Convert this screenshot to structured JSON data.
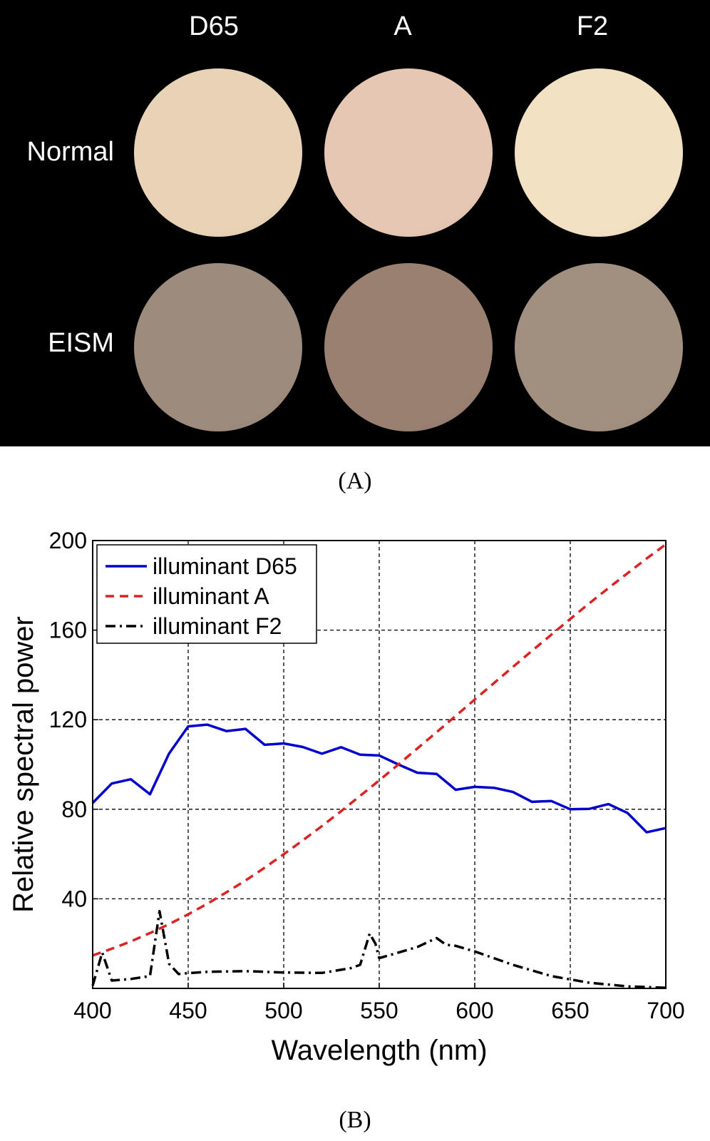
{
  "panel_a": {
    "columns": [
      "D65",
      "A",
      "F2"
    ],
    "rows": [
      {
        "label": "Normal",
        "colors": [
          "#e9d3b6",
          "#e6c7b3",
          "#f3e1c4"
        ]
      },
      {
        "label": "EISM",
        "colors": [
          "#9d8c7d",
          "#998071",
          "#a18f7f"
        ]
      }
    ],
    "caption": "(A)"
  },
  "panel_b_caption": "(B)",
  "chart_data": {
    "type": "line",
    "xlabel": "Wavelength (nm)",
    "ylabel": "Relative spectral power",
    "xlim": [
      400,
      700
    ],
    "ylim": [
      0,
      200
    ],
    "xticks": [
      400,
      450,
      500,
      550,
      600,
      650,
      700
    ],
    "yticks": [
      40,
      80,
      120,
      160,
      200
    ],
    "grid": true,
    "legend_position": "top-left",
    "series": [
      {
        "name": "illuminant D65",
        "color": "#0000cc",
        "style": "solid",
        "x": [
          400,
          410,
          420,
          430,
          440,
          450,
          460,
          470,
          480,
          490,
          500,
          510,
          520,
          530,
          540,
          550,
          560,
          570,
          580,
          590,
          600,
          610,
          620,
          630,
          640,
          650,
          660,
          670,
          680,
          690,
          700
        ],
        "y": [
          82.8,
          91.5,
          93.4,
          86.7,
          104.9,
          117.0,
          117.8,
          114.9,
          115.9,
          108.8,
          109.4,
          107.8,
          104.8,
          107.7,
          104.4,
          104.0,
          100.0,
          96.3,
          95.8,
          88.7,
          90.0,
          89.6,
          87.7,
          83.3,
          83.7,
          80.0,
          80.2,
          82.3,
          78.3,
          69.7,
          71.6
        ]
      },
      {
        "name": "illuminant A",
        "color": "#dd2222",
        "style": "dashed",
        "x": [
          400,
          410,
          420,
          430,
          440,
          450,
          460,
          470,
          480,
          490,
          500,
          510,
          520,
          530,
          540,
          550,
          560,
          570,
          580,
          590,
          600,
          610,
          620,
          630,
          640,
          650,
          660,
          670,
          680,
          690,
          700
        ],
        "y": [
          14.7,
          17.7,
          21.0,
          24.7,
          28.7,
          33.1,
          37.8,
          42.9,
          48.2,
          53.9,
          59.9,
          66.1,
          72.5,
          79.1,
          86.0,
          92.9,
          100.0,
          107.2,
          114.4,
          121.7,
          129.0,
          136.3,
          143.6,
          150.8,
          157.9,
          165.0,
          172.0,
          178.8,
          185.4,
          192.0,
          198.3
        ]
      },
      {
        "name": "illuminant F2",
        "color": "#000000",
        "style": "dashdot",
        "x": [
          400,
          405,
          410,
          420,
          430,
          435,
          440,
          445,
          450,
          460,
          480,
          500,
          520,
          535,
          540,
          545,
          548,
          550,
          560,
          570,
          580,
          585,
          590,
          600,
          620,
          640,
          660,
          680,
          700
        ],
        "y": [
          1.2,
          16.0,
          3.5,
          4.2,
          5.5,
          34.5,
          11.0,
          6.4,
          6.8,
          7.4,
          7.7,
          7.1,
          6.9,
          9.0,
          10.5,
          24.5,
          20.0,
          13.5,
          16.0,
          18.5,
          22.5,
          19.5,
          19.0,
          16.5,
          10.5,
          5.5,
          2.5,
          0.9,
          0.3
        ]
      }
    ]
  }
}
